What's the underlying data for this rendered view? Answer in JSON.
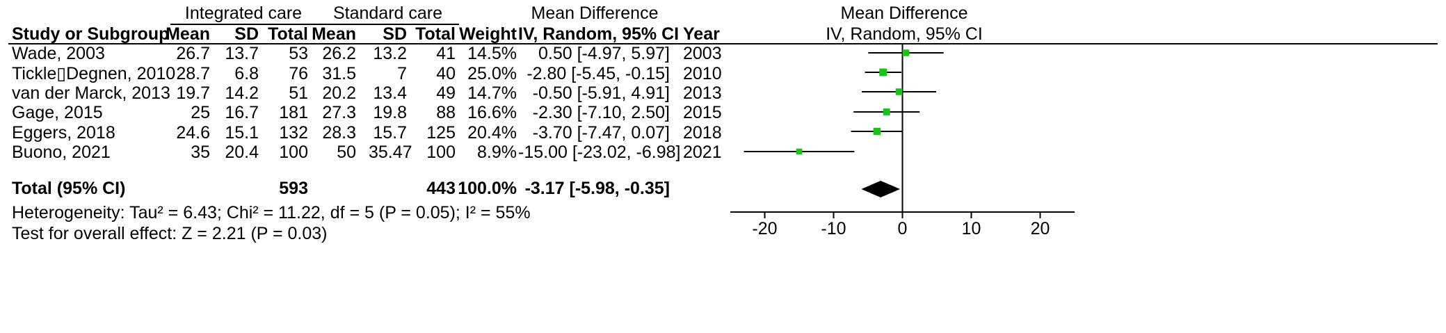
{
  "headers": {
    "group1": "Integrated care",
    "group2": "Standard care",
    "effect_table": "Mean Difference",
    "effect_table_sub": "IV, Random, 95% CI",
    "plot_title": "Mean Difference",
    "plot_subtitle": "IV, Random, 95% CI",
    "columns": {
      "study": "Study or Subgroup",
      "mean1": "Mean",
      "sd1": "SD",
      "total1": "Total",
      "mean2": "Mean",
      "sd2": "SD",
      "total2": "Total",
      "weight": "Weight",
      "ci": "IV, Random, 95% CI",
      "year": "Year"
    }
  },
  "studies": [
    {
      "study": "Wade, 2003",
      "mean1": "26.7",
      "sd1": "13.7",
      "total1": "53",
      "mean2": "26.2",
      "sd2": "13.2",
      "total2": "41",
      "weight": "14.5%",
      "ci": "0.50 [-4.97, 5.97]",
      "year": "2003"
    },
    {
      "study": "Tickle▯Degnen, 2010",
      "mean1": "28.7",
      "sd1": "6.8",
      "total1": "76",
      "mean2": "31.5",
      "sd2": "7",
      "total2": "40",
      "weight": "25.0%",
      "ci": "-2.80 [-5.45, -0.15]",
      "year": "2010"
    },
    {
      "study": "van der Marck, 2013",
      "mean1": "19.7",
      "sd1": "14.2",
      "total1": "51",
      "mean2": "20.2",
      "sd2": "13.4",
      "total2": "49",
      "weight": "14.7%",
      "ci": "-0.50 [-5.91, 4.91]",
      "year": "2013"
    },
    {
      "study": "Gage, 2015",
      "mean1": "25",
      "sd1": "16.7",
      "total1": "181",
      "mean2": "27.3",
      "sd2": "19.8",
      "total2": "88",
      "weight": "16.6%",
      "ci": "-2.30 [-7.10, 2.50]",
      "year": "2015"
    },
    {
      "study": "Eggers, 2018",
      "mean1": "24.6",
      "sd1": "15.1",
      "total1": "132",
      "mean2": "28.3",
      "sd2": "15.7",
      "total2": "125",
      "weight": "20.4%",
      "ci": "-3.70 [-7.47, 0.07]",
      "year": "2018"
    },
    {
      "study": "Buono, 2021",
      "mean1": "35",
      "sd1": "20.4",
      "total1": "100",
      "mean2": "50",
      "sd2": "35.47",
      "total2": "100",
      "weight": "8.9%",
      "ci": "-15.00 [-23.02, -6.98]",
      "year": "2021"
    }
  ],
  "total": {
    "label": "Total (95% CI)",
    "total1": "593",
    "total2": "443",
    "weight": "100.0%",
    "ci": "-3.17 [-5.98, -0.35]"
  },
  "footer": {
    "heterogeneity": "Heterogeneity: Tau² = 6.43; Chi² = 11.22, df = 5 (P = 0.05); I² = 55%",
    "overall": "Test for overall effect: Z = 2.21 (P = 0.03)"
  },
  "chart_data": {
    "type": "forest",
    "title": "Mean Difference",
    "subtitle": "IV, Random, 95% CI",
    "xlim": [
      -25,
      25
    ],
    "xticks": [
      -20,
      -10,
      0,
      10,
      20
    ],
    "x_tick_labels": [
      "-20",
      "-10",
      "0",
      "10",
      "20"
    ],
    "null_line": 0,
    "marker_color": "#19c419",
    "diamond_color": "#000000",
    "studies": [
      {
        "label": "Wade, 2003",
        "estimate": 0.5,
        "lower": -4.97,
        "upper": 5.97,
        "weight": 14.5
      },
      {
        "label": "Tickle▯Degnen, 2010",
        "estimate": -2.8,
        "lower": -5.45,
        "upper": -0.15,
        "weight": 25.0
      },
      {
        "label": "van der Marck, 2013",
        "estimate": -0.5,
        "lower": -5.91,
        "upper": 4.91,
        "weight": 14.7
      },
      {
        "label": "Gage, 2015",
        "estimate": -2.3,
        "lower": -7.1,
        "upper": 2.5,
        "weight": 16.6
      },
      {
        "label": "Eggers, 2018",
        "estimate": -3.7,
        "lower": -7.47,
        "upper": 0.07,
        "weight": 20.4
      },
      {
        "label": "Buono, 2021",
        "estimate": -15.0,
        "lower": -23.02,
        "upper": -6.98,
        "weight": 8.9
      }
    ],
    "pooled": {
      "estimate": -3.17,
      "lower": -5.98,
      "upper": -0.35
    }
  }
}
